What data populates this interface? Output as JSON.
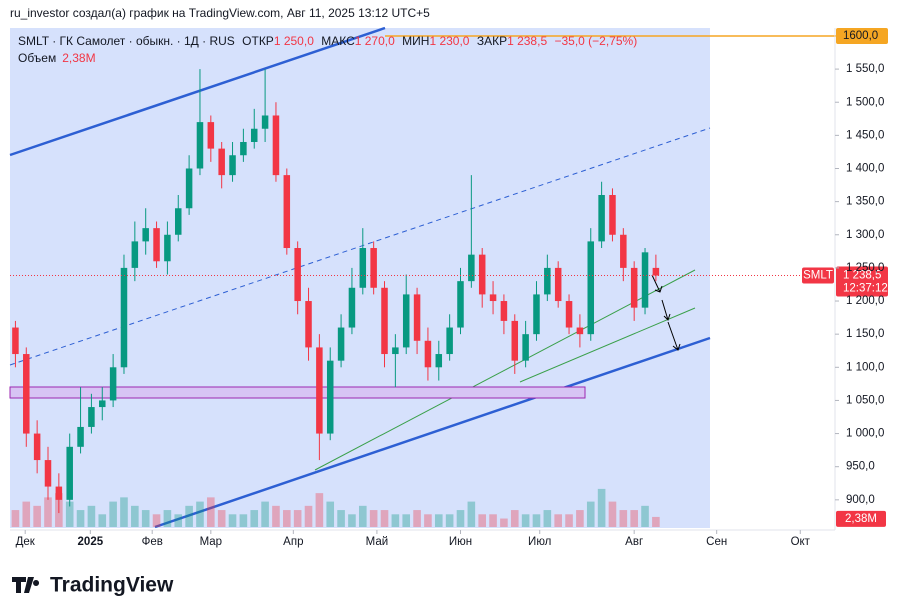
{
  "header": "ru_investor создал(а) график на TradingView.com, Авг 11, 2025 13:12 UTC+5",
  "legend": {
    "symbol": "SMLT · ГК Самолет · обыкн. · 1Д · RUS",
    "open_label": "ОТКР",
    "open": "1 250,0",
    "high_label": "МАКС",
    "high": "1 270,0",
    "low_label": "МИН",
    "low": "1 230,0",
    "close_label": "ЗАКР",
    "close": "1 238,5",
    "change": "−35,0 (−2,75%)",
    "volume_label": "Объем",
    "volume": "2,38M"
  },
  "price_badge": {
    "symbol": "SMLT",
    "price": "1 238,5",
    "timer": "12:37:12"
  },
  "volume_badge": "2,38M",
  "brand": "TradingView",
  "chart_data": {
    "type": "candlestick",
    "up_color": "#089981",
    "down_color": "#f23645",
    "xlim": [
      0,
      76
    ],
    "xticks": [
      {
        "value": 1.4,
        "label": "Дек"
      },
      {
        "value": 7.4,
        "label": "2025"
      },
      {
        "value": 13.1,
        "label": "Фев"
      },
      {
        "value": 18.5,
        "label": "Мар"
      },
      {
        "value": 26.1,
        "label": "Апр"
      },
      {
        "value": 33.8,
        "label": "Май"
      },
      {
        "value": 41.5,
        "label": "Июн"
      },
      {
        "value": 48.8,
        "label": "Июл"
      },
      {
        "value": 57.5,
        "label": "Авг"
      },
      {
        "value": 65.1,
        "label": "Сен"
      },
      {
        "value": 72.8,
        "label": "Окт"
      }
    ],
    "ylim": [
      859,
      1609
    ],
    "yticks": [
      {
        "value": 900,
        "label": "900,0"
      },
      {
        "value": 950,
        "label": "950,0"
      },
      {
        "value": 1000,
        "label": "1 000,0"
      },
      {
        "value": 1050,
        "label": "1 050,0"
      },
      {
        "value": 1100,
        "label": "1 100,0"
      },
      {
        "value": 1150,
        "label": "1 150,0"
      },
      {
        "value": 1200,
        "label": "1 200,0"
      },
      {
        "value": 1250,
        "label": "1 250,0"
      },
      {
        "value": 1300,
        "label": "1 300,0"
      },
      {
        "value": 1350,
        "label": "1 350,0"
      },
      {
        "value": 1400,
        "label": "1 400,0"
      },
      {
        "value": 1450,
        "label": "1 450,0"
      },
      {
        "value": 1500,
        "label": "1 500,0"
      },
      {
        "value": 1550,
        "label": "1 550,0"
      }
    ],
    "level": {
      "value": 1600,
      "label": "1600,0"
    },
    "vlim": [
      0,
      30
    ],
    "open": [
      1160,
      1120,
      1000,
      960,
      920,
      900,
      980,
      1010,
      1040,
      1050,
      1100,
      1250,
      1290,
      1310,
      1260,
      1300,
      1340,
      1400,
      1470,
      1430,
      1390,
      1420,
      1440,
      1460,
      1480,
      1390,
      1280,
      1200,
      1130,
      1000,
      1110,
      1160,
      1220,
      1280,
      1220,
      1120,
      1130,
      1210,
      1140,
      1100,
      1120,
      1160,
      1230,
      1270,
      1210,
      1200,
      1170,
      1110,
      1150,
      1210,
      1250,
      1200,
      1160,
      1150,
      1290,
      1360,
      1300,
      1250,
      1190,
      1250
    ],
    "high": [
      1170,
      1130,
      1020,
      980,
      940,
      1000,
      1070,
      1060,
      1070,
      1120,
      1270,
      1320,
      1340,
      1320,
      1320,
      1360,
      1420,
      1550,
      1480,
      1440,
      1440,
      1460,
      1490,
      1550,
      1500,
      1400,
      1290,
      1220,
      1150,
      1130,
      1180,
      1250,
      1310,
      1290,
      1230,
      1150,
      1240,
      1220,
      1160,
      1140,
      1180,
      1250,
      1390,
      1280,
      1230,
      1210,
      1180,
      1170,
      1230,
      1270,
      1260,
      1210,
      1180,
      1310,
      1380,
      1370,
      1310,
      1260,
      1280,
      1270
    ],
    "low": [
      1100,
      980,
      940,
      900,
      880,
      890,
      970,
      1000,
      1020,
      1040,
      1090,
      1230,
      1270,
      1250,
      1240,
      1290,
      1330,
      1390,
      1410,
      1370,
      1380,
      1410,
      1430,
      1440,
      1380,
      1270,
      1180,
      1110,
      960,
      990,
      1100,
      1150,
      1210,
      1210,
      1100,
      1070,
      1120,
      1120,
      1080,
      1080,
      1110,
      1150,
      1220,
      1190,
      1180,
      1150,
      1090,
      1100,
      1140,
      1200,
      1190,
      1150,
      1130,
      1140,
      1280,
      1290,
      1230,
      1170,
      1180,
      1230
    ],
    "close": [
      1120,
      1000,
      960,
      920,
      900,
      980,
      1010,
      1040,
      1050,
      1100,
      1250,
      1290,
      1310,
      1260,
      1300,
      1340,
      1400,
      1470,
      1430,
      1390,
      1420,
      1440,
      1460,
      1480,
      1390,
      1280,
      1200,
      1130,
      1000,
      1110,
      1160,
      1220,
      1280,
      1220,
      1120,
      1130,
      1210,
      1140,
      1100,
      1120,
      1160,
      1230,
      1270,
      1210,
      1200,
      1170,
      1110,
      1150,
      1210,
      1250,
      1200,
      1160,
      1150,
      1290,
      1360,
      1300,
      1250,
      1190,
      1273.5,
      1238.5
    ],
    "volume": [
      4,
      6,
      5,
      7,
      8,
      6,
      4,
      5,
      3,
      6,
      7,
      5,
      4,
      3,
      4,
      3,
      5,
      6,
      7,
      4,
      3,
      3,
      4,
      6,
      5,
      4,
      4,
      5,
      8,
      6,
      4,
      3,
      5,
      4,
      4,
      3,
      3,
      4,
      3,
      3,
      3,
      4,
      6,
      3,
      3,
      2,
      4,
      3,
      3,
      4,
      3,
      3,
      4,
      6,
      9,
      6,
      4,
      4,
      5,
      2.38
    ]
  }
}
